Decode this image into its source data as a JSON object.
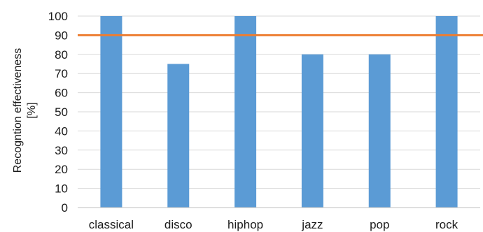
{
  "chart_data": {
    "type": "bar",
    "categories": [
      "classical",
      "disco",
      "hiphop",
      "jazz",
      "pop",
      "rock"
    ],
    "values": [
      100,
      75,
      100,
      80,
      80,
      100
    ],
    "ylabel_line1": "Recogntion effectiveness",
    "ylabel_line2": "[%]",
    "ylim": [
      0,
      100
    ],
    "yticks": [
      "0",
      "10",
      "20",
      "30",
      "40",
      "50",
      "60",
      "70",
      "80",
      "90",
      "100"
    ],
    "reference_line": {
      "value": 90
    },
    "grid": true,
    "bar_color": "#5b9bd5",
    "reference_color": "#ed7d31"
  }
}
